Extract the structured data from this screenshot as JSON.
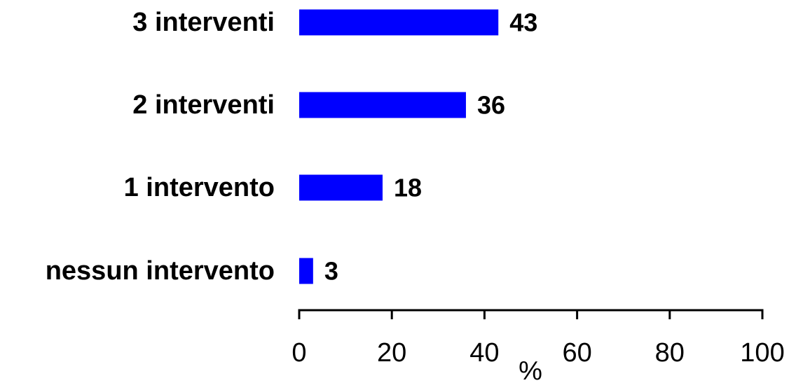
{
  "chart_data": {
    "type": "bar",
    "orientation": "horizontal",
    "categories": [
      "3 interventi",
      "2 interventi",
      "1 intervento",
      "nessun intervento"
    ],
    "values": [
      43,
      36,
      18,
      3
    ],
    "value_labels": [
      "43",
      "36",
      "18",
      "3"
    ],
    "title": "",
    "xlabel": "%",
    "ylabel": "",
    "xlim": [
      0,
      100
    ],
    "x_ticks": [
      0,
      20,
      40,
      60,
      80,
      100
    ],
    "x_tick_labels": [
      "0",
      "20",
      "40",
      "60",
      "80",
      "100"
    ],
    "grid": false,
    "legend": "none",
    "bar_color": "#0000FF",
    "axis_color": "#000000"
  }
}
